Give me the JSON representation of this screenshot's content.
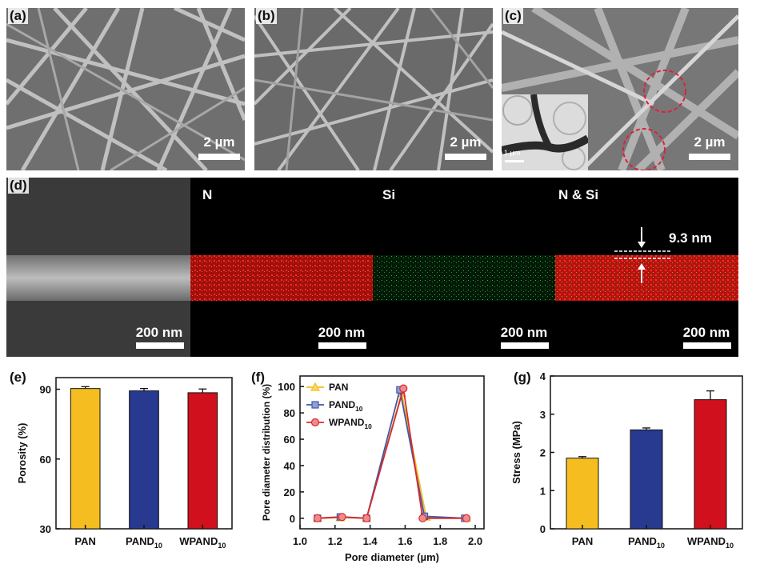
{
  "figure": {
    "panel_labels": {
      "a": "(a)",
      "b": "(b)",
      "c": "(c)",
      "d": "(d)",
      "e": "(e)",
      "f": "(f)",
      "g": "(g)"
    },
    "sem_scale": "2 µm",
    "inset_scale": "1 µm",
    "eds": {
      "element_labels": [
        "N",
        "Si",
        "N & Si"
      ],
      "scale": "200 nm",
      "thickness": "9.3 nm"
    }
  },
  "chart_data": [
    {
      "id": "e",
      "type": "bar",
      "categories": [
        "PAN",
        "PAND",
        "WPAND"
      ],
      "category_subscripts": [
        "",
        "10",
        "10"
      ],
      "values": [
        90.3,
        89.3,
        88.5
      ],
      "errors": [
        0.8,
        1.0,
        1.6
      ],
      "colors": [
        "#f5bd1f",
        "#283a8f",
        "#d0101c"
      ],
      "ylabel": "Porosity (%)",
      "ylim": [
        30,
        95
      ],
      "yticks": [
        30,
        60,
        90
      ]
    },
    {
      "id": "f",
      "type": "line",
      "xlabel": "Pore diameter (µm)",
      "ylabel": "Pore diameter distribution (%)",
      "xlim": [
        1.0,
        2.05
      ],
      "ylim": [
        -8,
        108
      ],
      "xticks": [
        1.0,
        1.2,
        1.4,
        1.6,
        1.8,
        2.0
      ],
      "xtick_labels": [
        "1.0",
        "1.2",
        "1.4",
        "1.6",
        "1.8",
        "2.0"
      ],
      "yticks": [
        0,
        20,
        40,
        60,
        80,
        100
      ],
      "series": [
        {
          "name": "PAN",
          "subscript": "",
          "color": "#f5bd1f",
          "marker": "triangle",
          "x": [
            1.1,
            1.23,
            1.38,
            1.58,
            1.72,
            1.95
          ],
          "y": [
            0,
            0.5,
            0,
            95,
            1,
            0
          ]
        },
        {
          "name": "PAND",
          "subscript": "10",
          "color": "#3c5aa8",
          "marker": "square",
          "x": [
            1.1,
            1.23,
            1.38,
            1.57,
            1.71,
            1.94
          ],
          "y": [
            0,
            1,
            0,
            97.5,
            1.5,
            0
          ]
        },
        {
          "name": "WPAND",
          "subscript": "10",
          "color": "#d92b30",
          "marker": "circle",
          "x": [
            1.1,
            1.24,
            1.38,
            1.59,
            1.7,
            1.95
          ],
          "y": [
            0,
            1,
            0,
            98.5,
            0,
            0
          ]
        }
      ]
    },
    {
      "id": "g",
      "type": "bar",
      "categories": [
        "PAN",
        "PAND",
        "WPAND"
      ],
      "category_subscripts": [
        "",
        "10",
        "10"
      ],
      "values": [
        1.85,
        2.59,
        3.38
      ],
      "errors": [
        0.04,
        0.05,
        0.23
      ],
      "colors": [
        "#f5bd1f",
        "#283a8f",
        "#d0101c"
      ],
      "ylabel": "Stress (MPa)",
      "ylim": [
        0,
        4
      ],
      "yticks": [
        0,
        1,
        2,
        3,
        4
      ]
    }
  ]
}
